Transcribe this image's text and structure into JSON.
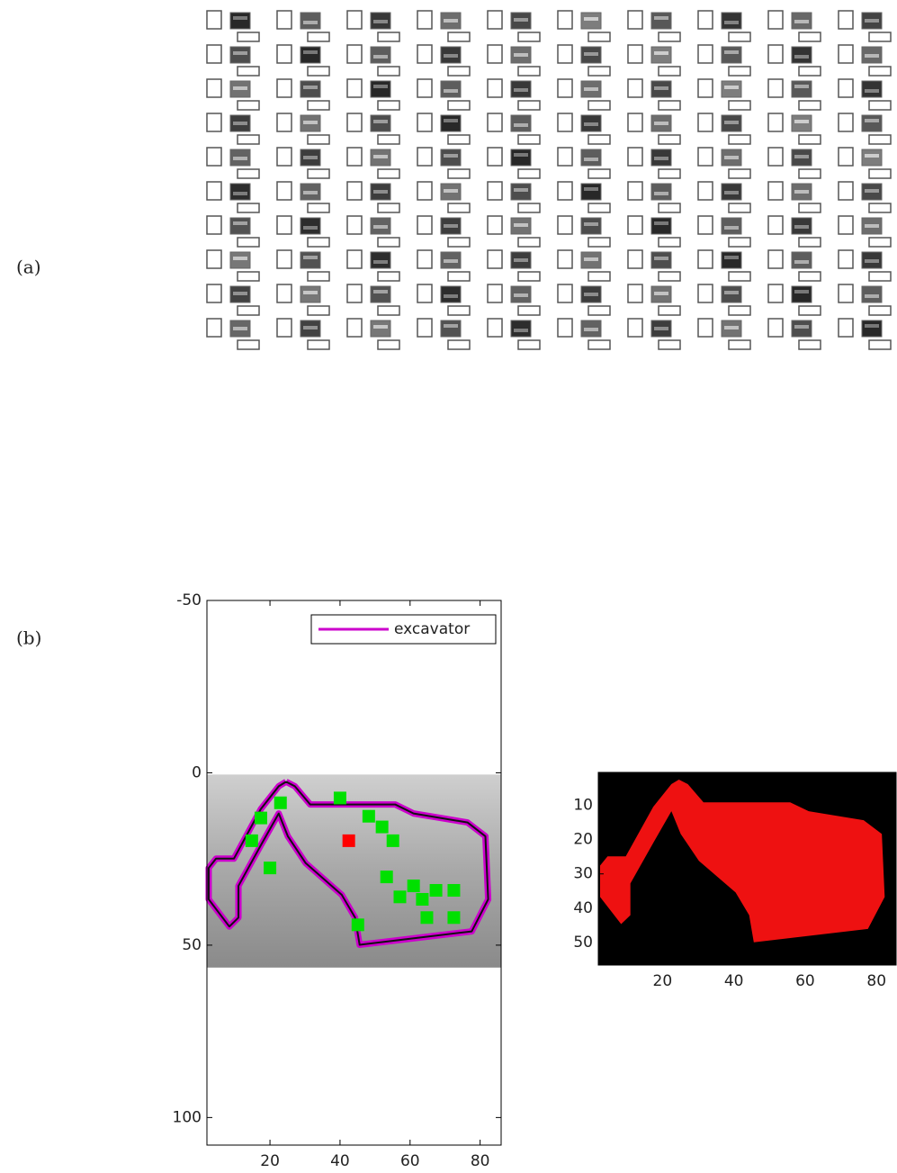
{
  "panels": {
    "a": {
      "label": "(a)"
    },
    "b": {
      "label": "(b)"
    }
  },
  "chart_data": [
    {
      "type": "overlay",
      "xlim": [
        2,
        86
      ],
      "ylim": [
        -50,
        108
      ],
      "y_reversed": true,
      "xticks": [
        20,
        40,
        60,
        80
      ],
      "yticks": [
        -50,
        0,
        50,
        100
      ],
      "image_extent": {
        "x": [
          2,
          86
        ],
        "y": [
          0.5,
          56.5
        ]
      },
      "legend": "top-right",
      "series": [
        {
          "name": "excavator",
          "color": "#cc00cc",
          "style": "line",
          "x": [
            24.6,
            27.1,
            31.5,
            55.8,
            61.0,
            76.4,
            81.5,
            82.3,
            77.6,
            45.6,
            44.3,
            40.5,
            30.2,
            25.1,
            22.5,
            17.4,
            11.0,
            11.0,
            8.4,
            2.5,
            2.5,
            4.6,
            9.7,
            17.4,
            22.5,
            24.6
          ],
          "y": [
            2.6,
            3.9,
            9.2,
            9.2,
            11.8,
            14.4,
            18.4,
            36.7,
            46.0,
            49.9,
            42.0,
            35.4,
            26.2,
            18.4,
            11.8,
            21.0,
            32.8,
            42.0,
            44.6,
            36.7,
            27.6,
            24.9,
            24.9,
            10.5,
            3.9,
            2.6
          ]
        },
        {
          "color": "#00e000",
          "style": "points",
          "x": [
            23.0,
            17.4,
            14.8,
            20.0,
            40.0,
            48.2,
            52.0,
            55.1,
            53.3,
            61.0,
            63.5,
            67.4,
            72.5,
            57.1,
            64.8,
            72.5,
            45.1
          ],
          "y": [
            8.7,
            13.1,
            19.7,
            27.6,
            7.3,
            12.6,
            15.7,
            19.7,
            30.2,
            32.8,
            36.7,
            34.1,
            34.1,
            36.0,
            42.0,
            42.0,
            44.1
          ]
        },
        {
          "color": "#ff0000",
          "style": "points",
          "x": [
            42.5
          ],
          "y": [
            19.7
          ]
        }
      ]
    },
    {
      "type": "mask",
      "xlim": [
        2,
        85.5
      ],
      "ylim": [
        0.5,
        56.5
      ],
      "y_reversed": true,
      "xticks": [
        20,
        40,
        60,
        80
      ],
      "yticks": [
        10,
        20,
        30,
        40,
        50
      ],
      "color": "#ee1111",
      "background": "#000000"
    }
  ]
}
